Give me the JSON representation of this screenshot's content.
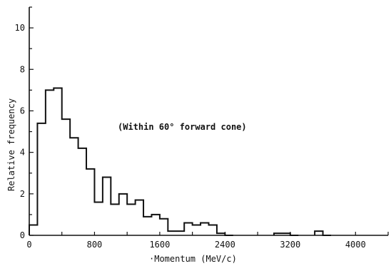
{
  "chart_data": {
    "type": "bar",
    "title": "",
    "xlabel": "·Momentum (MeV/c)",
    "ylabel": "Relative  frequency",
    "annotation": "(Within 60° forward cone)",
    "xlim": [
      0,
      4400
    ],
    "ylim": [
      0,
      11
    ],
    "xticks": [
      0,
      800,
      1600,
      2400,
      3200,
      4000
    ],
    "xtick_labels": [
      "0",
      "800",
      "1600",
      "2400",
      "3200",
      "4000"
    ],
    "yticks": [
      0,
      2,
      4,
      6,
      8,
      10
    ],
    "ytick_labels": [
      "0",
      "2",
      "4",
      "6",
      "8",
      "10"
    ],
    "bin_width": 100,
    "bin_edges_start": 0,
    "values": [
      0.5,
      5.4,
      7.0,
      7.1,
      5.6,
      4.7,
      4.2,
      3.2,
      1.6,
      2.8,
      1.5,
      2.0,
      1.5,
      1.7,
      0.9,
      1.0,
      0.8,
      0.2,
      0.2,
      0.6,
      0.5,
      0.6,
      0.5,
      0.1,
      0,
      0,
      0,
      0,
      0,
      0,
      0.1,
      0.1,
      0,
      0,
      0,
      0.2,
      0,
      0,
      0,
      0,
      0,
      0,
      0,
      0
    ],
    "grid": false,
    "legend": "none"
  }
}
